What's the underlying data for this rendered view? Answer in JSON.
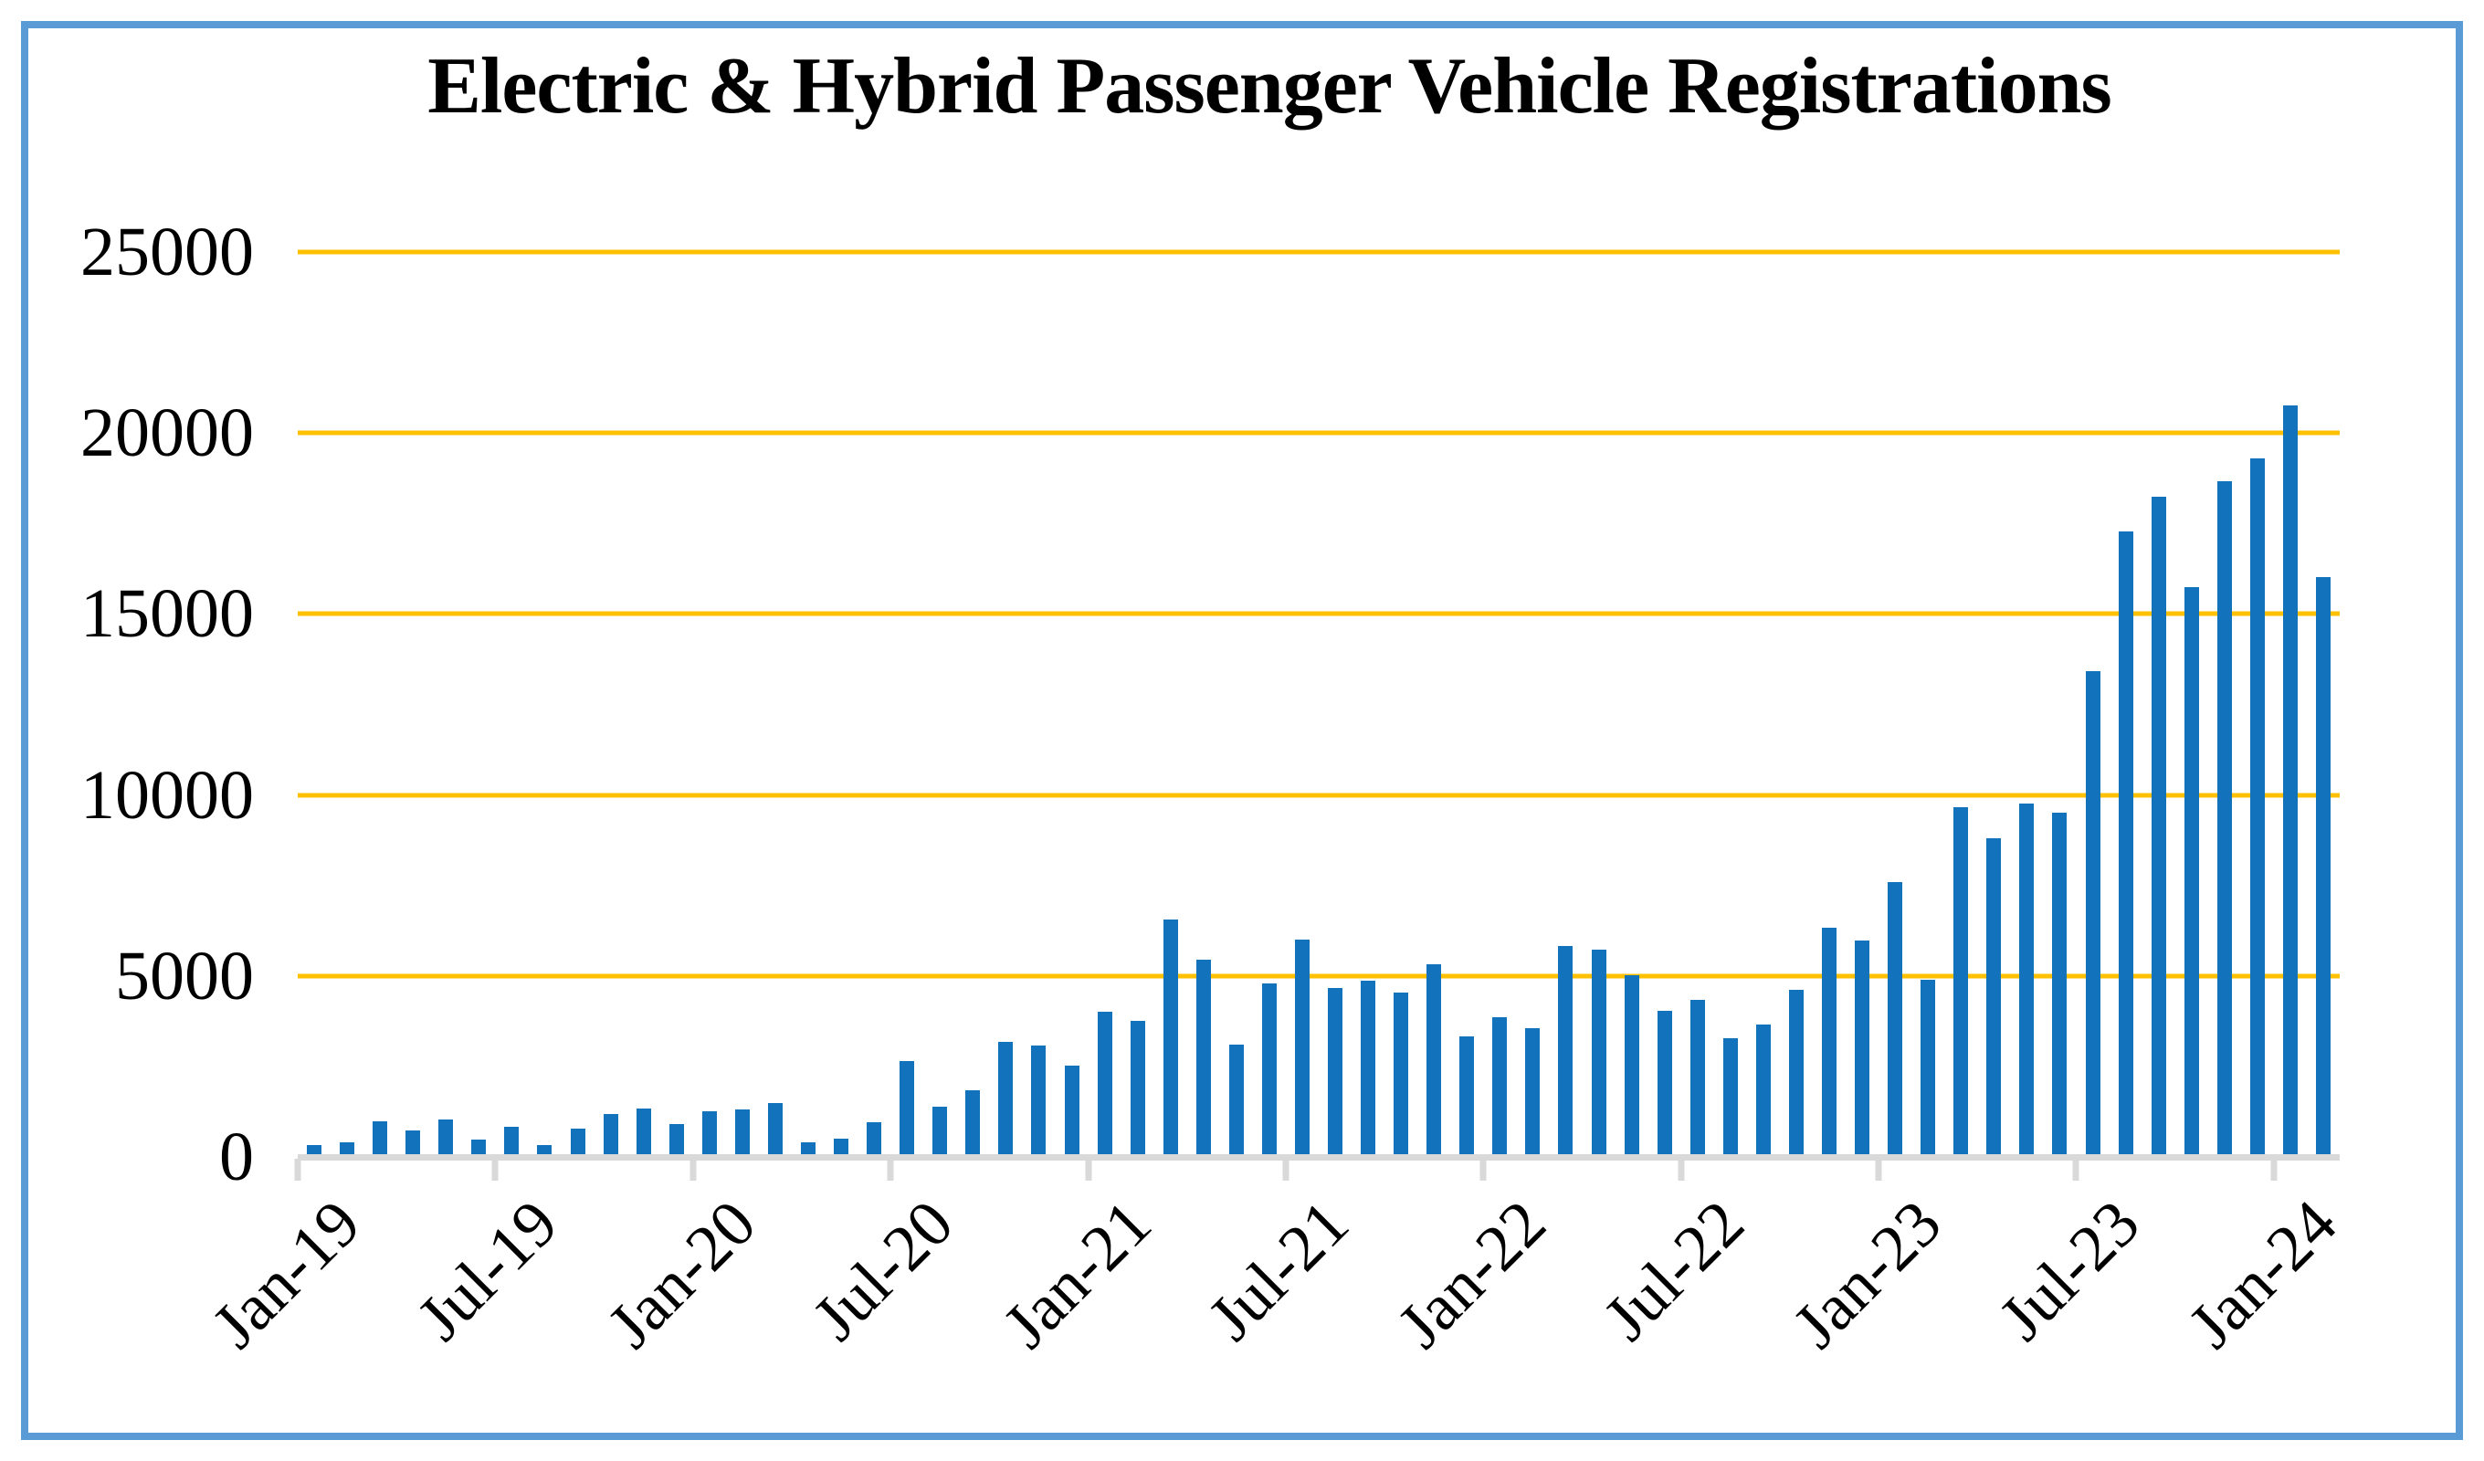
{
  "chart_data": {
    "type": "bar",
    "title": "Electric & Hybrid Passenger Vehicle Registrations",
    "categories": [
      "Jan-19",
      "Feb-19",
      "Mar-19",
      "Apr-19",
      "May-19",
      "Jun-19",
      "Jul-19",
      "Aug-19",
      "Sep-19",
      "Oct-19",
      "Nov-19",
      "Dec-19",
      "Jan-20",
      "Feb-20",
      "Mar-20",
      "Apr-20",
      "May-20",
      "Jun-20",
      "Jul-20",
      "Aug-20",
      "Sep-20",
      "Oct-20",
      "Nov-20",
      "Dec-20",
      "Jan-21",
      "Feb-21",
      "Mar-21",
      "Apr-21",
      "May-21",
      "Jun-21",
      "Jul-21",
      "Aug-21",
      "Sep-21",
      "Oct-21",
      "Nov-21",
      "Dec-21",
      "Jan-22",
      "Feb-22",
      "Mar-22",
      "Apr-22",
      "May-22",
      "Jun-22",
      "Jul-22",
      "Aug-22",
      "Sep-22",
      "Oct-22",
      "Nov-22",
      "Dec-22",
      "Jan-23",
      "Feb-23",
      "Mar-23",
      "Apr-23",
      "May-23",
      "Jun-23",
      "Jul-23",
      "Aug-23",
      "Sep-23",
      "Oct-23",
      "Nov-23",
      "Dec-23",
      "Jan-24",
      "Feb-24"
    ],
    "values": [
      340,
      400,
      990,
      730,
      1040,
      490,
      830,
      330,
      770,
      1180,
      1330,
      920,
      1250,
      1300,
      1480,
      400,
      500,
      950,
      2640,
      1400,
      1850,
      3170,
      3090,
      2520,
      4000,
      3760,
      6570,
      5460,
      3100,
      4790,
      6010,
      4680,
      4860,
      4540,
      5330,
      3330,
      3860,
      3560,
      5830,
      5730,
      5010,
      4040,
      4340,
      3270,
      3650,
      4610,
      6320,
      5990,
      7600,
      4900,
      9670,
      8810,
      9760,
      9500,
      13430,
      17270,
      18230,
      15740,
      18680,
      19310,
      20750,
      16020
    ],
    "x_tick_labels": [
      "Jan-19",
      "Jul-19",
      "Jan-20",
      "Jul-20",
      "Jan-21",
      "Jul-21",
      "Jan-22",
      "Jul-22",
      "Jan-23",
      "Jul-23",
      "Jan-24"
    ],
    "x_tick_month_indices": [
      0,
      6,
      12,
      18,
      24,
      30,
      36,
      42,
      48,
      54,
      60
    ],
    "y_tick_labels": [
      "0",
      "5000",
      "10000",
      "15000",
      "20000",
      "25000"
    ],
    "y_ticks": [
      0,
      5000,
      10000,
      15000,
      20000,
      25000
    ],
    "ylim": [
      0,
      25000
    ],
    "xlabel": "",
    "ylabel": "",
    "grid": "horizontal",
    "legend": "none",
    "colors": {
      "bar": "#1272BC",
      "gridline": "#FFC000",
      "axis_line": "#D9D9D9",
      "text": "#000000",
      "frame_border": "#5B9BD5",
      "background": "#FFFFFF"
    }
  }
}
